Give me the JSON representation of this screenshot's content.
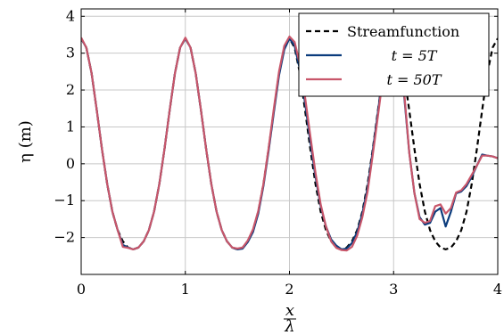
{
  "chart_data": {
    "type": "line",
    "xlabel_num": "x",
    "xlabel_den": "λ",
    "ylabel": "η (m)",
    "xlim": [
      0,
      4
    ],
    "ylim": [
      -3,
      4.2
    ],
    "xticks": [
      0,
      1,
      2,
      3,
      4
    ],
    "yticks": [
      -2,
      -1,
      0,
      1,
      2,
      3,
      4
    ],
    "xtick_labels": [
      "0",
      "1",
      "2",
      "3",
      "4"
    ],
    "ytick_labels": [
      "−2",
      "−1",
      "0",
      "1",
      "2",
      "3",
      "4"
    ],
    "grid": true,
    "legend_position": "top-right",
    "series": [
      {
        "name": "Streamfunction",
        "color": "#000000",
        "style": "dashed",
        "x": [
          0,
          0.05,
          0.1,
          0.15,
          0.2,
          0.25,
          0.3,
          0.35,
          0.4,
          0.45,
          0.5,
          0.55,
          0.6,
          0.65,
          0.7,
          0.75,
          0.8,
          0.85,
          0.9,
          0.95,
          1.0,
          1.05,
          1.1,
          1.15,
          1.2,
          1.25,
          1.3,
          1.35,
          1.4,
          1.45,
          1.5,
          1.55,
          1.6,
          1.65,
          1.7,
          1.75,
          1.8,
          1.85,
          1.9,
          1.95,
          2.0,
          2.05,
          2.1,
          2.15,
          2.2,
          2.25,
          2.3,
          2.35,
          2.4,
          2.45,
          2.5,
          2.55,
          2.6,
          2.65,
          2.7,
          2.75,
          2.8,
          2.85,
          2.9,
          2.95,
          3.0,
          3.05,
          3.1,
          3.15,
          3.2,
          3.25,
          3.3,
          3.35,
          3.4,
          3.45,
          3.5,
          3.55,
          3.6,
          3.65,
          3.7,
          3.75,
          3.8,
          3.85,
          3.9,
          3.95,
          4.0
        ],
        "values": [
          3.4,
          3.15,
          2.45,
          1.45,
          0.4,
          -0.55,
          -1.3,
          -1.8,
          -2.1,
          -2.27,
          -2.32,
          -2.27,
          -2.1,
          -1.8,
          -1.3,
          -0.55,
          0.4,
          1.45,
          2.45,
          3.15,
          3.4,
          3.15,
          2.45,
          1.45,
          0.4,
          -0.55,
          -1.3,
          -1.8,
          -2.1,
          -2.27,
          -2.32,
          -2.27,
          -2.1,
          -1.8,
          -1.3,
          -0.55,
          0.4,
          1.45,
          2.45,
          3.15,
          3.4,
          3.15,
          2.45,
          1.45,
          0.4,
          -0.55,
          -1.3,
          -1.8,
          -2.1,
          -2.27,
          -2.32,
          -2.27,
          -2.1,
          -1.8,
          -1.3,
          -0.55,
          0.4,
          1.45,
          2.45,
          3.15,
          3.4,
          3.15,
          2.45,
          1.45,
          0.4,
          -0.55,
          -1.3,
          -1.8,
          -2.1,
          -2.27,
          -2.32,
          -2.27,
          -2.1,
          -1.8,
          -1.3,
          -0.55,
          0.4,
          1.45,
          2.45,
          3.15,
          3.4
        ]
      },
      {
        "name": "t = 5T",
        "color": "#0b3c7d",
        "style": "solid",
        "x": [
          0,
          0.05,
          0.1,
          0.15,
          0.2,
          0.25,
          0.3,
          0.35,
          0.4,
          0.45,
          0.5,
          0.55,
          0.6,
          0.65,
          0.7,
          0.75,
          0.8,
          0.85,
          0.9,
          0.95,
          1.0,
          1.05,
          1.1,
          1.15,
          1.2,
          1.25,
          1.3,
          1.35,
          1.4,
          1.45,
          1.5,
          1.55,
          1.6,
          1.65,
          1.7,
          1.75,
          1.8,
          1.85,
          1.9,
          1.95,
          2.0,
          2.05,
          2.1,
          2.15,
          2.2,
          2.25,
          2.3,
          2.35,
          2.4,
          2.45,
          2.5,
          2.55,
          2.6,
          2.65,
          2.7,
          2.75,
          2.8,
          2.85,
          2.9,
          2.95,
          3.0,
          3.05,
          3.1,
          3.15,
          3.2,
          3.25,
          3.3,
          3.35,
          3.4,
          3.45,
          3.5,
          3.55,
          3.6,
          3.65,
          3.7,
          3.75,
          3.8,
          3.85,
          3.9,
          3.95,
          4.0
        ],
        "values": [
          3.4,
          3.15,
          2.45,
          1.45,
          0.4,
          -0.55,
          -1.3,
          -1.8,
          -2.2,
          -2.27,
          -2.32,
          -2.27,
          -2.1,
          -1.8,
          -1.3,
          -0.55,
          0.4,
          1.45,
          2.45,
          3.15,
          3.4,
          3.15,
          2.45,
          1.45,
          0.4,
          -0.55,
          -1.3,
          -1.8,
          -2.1,
          -2.27,
          -2.32,
          -2.3,
          -2.12,
          -1.85,
          -1.35,
          -0.6,
          0.35,
          1.4,
          2.4,
          3.1,
          3.4,
          3.2,
          2.55,
          1.65,
          0.6,
          -0.35,
          -1.15,
          -1.7,
          -2.05,
          -2.22,
          -2.32,
          -2.3,
          -2.15,
          -1.85,
          -1.35,
          -0.65,
          0.35,
          1.4,
          2.5,
          3.1,
          3.3,
          2.9,
          1.9,
          0.3,
          -0.8,
          -1.45,
          -1.65,
          -1.6,
          -1.3,
          -1.2,
          -1.7,
          -1.3,
          -0.8,
          -0.75,
          -0.6,
          -0.35,
          -0.05,
          0.25,
          0.22,
          0.2,
          0.15
        ]
      },
      {
        "name": "t = 50T",
        "color": "#c8566a",
        "style": "solid",
        "x": [
          0,
          0.05,
          0.1,
          0.15,
          0.2,
          0.25,
          0.3,
          0.35,
          0.4,
          0.45,
          0.5,
          0.55,
          0.6,
          0.65,
          0.7,
          0.75,
          0.8,
          0.85,
          0.9,
          0.95,
          1.0,
          1.05,
          1.1,
          1.15,
          1.2,
          1.25,
          1.3,
          1.35,
          1.4,
          1.45,
          1.5,
          1.55,
          1.6,
          1.65,
          1.7,
          1.75,
          1.8,
          1.85,
          1.9,
          1.95,
          2.0,
          2.05,
          2.1,
          2.15,
          2.2,
          2.25,
          2.3,
          2.35,
          2.4,
          2.45,
          2.5,
          2.55,
          2.6,
          2.65,
          2.7,
          2.75,
          2.8,
          2.85,
          2.9,
          2.95,
          3.0,
          3.05,
          3.1,
          3.15,
          3.2,
          3.25,
          3.3,
          3.35,
          3.4,
          3.45,
          3.5,
          3.55,
          3.6,
          3.65,
          3.7,
          3.75,
          3.8,
          3.85,
          3.9,
          3.95,
          4.0
        ],
        "values": [
          3.42,
          3.15,
          2.45,
          1.45,
          0.4,
          -0.55,
          -1.3,
          -1.8,
          -2.25,
          -2.28,
          -2.32,
          -2.27,
          -2.1,
          -1.8,
          -1.3,
          -0.55,
          0.4,
          1.45,
          2.45,
          3.15,
          3.42,
          3.15,
          2.45,
          1.45,
          0.4,
          -0.55,
          -1.3,
          -1.8,
          -2.1,
          -2.27,
          -2.3,
          -2.27,
          -2.08,
          -1.78,
          -1.28,
          -0.55,
          0.42,
          1.5,
          2.5,
          3.2,
          3.45,
          3.3,
          2.7,
          1.8,
          0.75,
          -0.25,
          -1.1,
          -1.7,
          -2.1,
          -2.28,
          -2.34,
          -2.35,
          -2.25,
          -1.95,
          -1.45,
          -0.75,
          0.25,
          1.3,
          2.4,
          3.1,
          3.35,
          3.0,
          2.0,
          0.3,
          -0.8,
          -1.5,
          -1.6,
          -1.55,
          -1.15,
          -1.1,
          -1.35,
          -1.2,
          -0.78,
          -0.72,
          -0.55,
          -0.3,
          -0.05,
          0.22,
          0.22,
          0.2,
          0.15
        ]
      }
    ]
  }
}
